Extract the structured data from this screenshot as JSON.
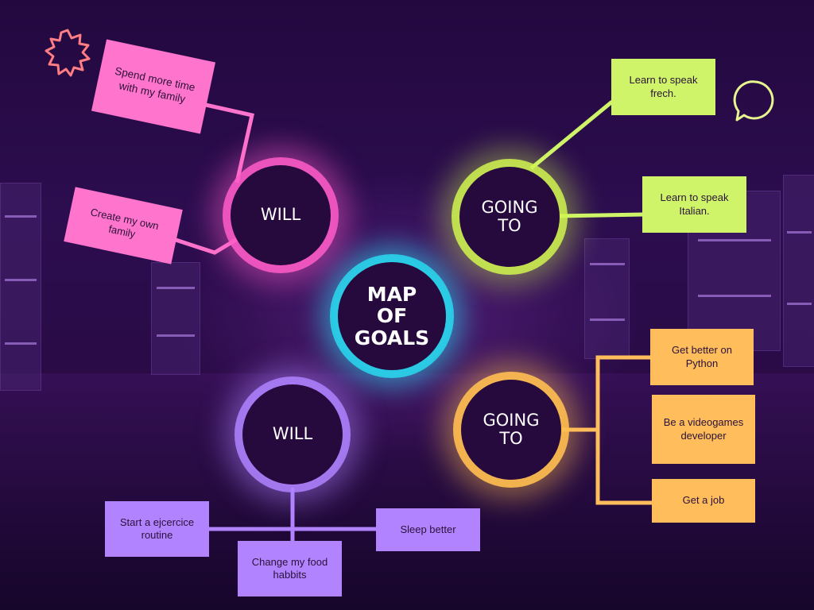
{
  "center": {
    "line1": "MAP",
    "line2": "OF",
    "line3": "GOALS"
  },
  "will_top": {
    "label": "WILL",
    "items": [
      "Spend more time with my family",
      "Create my own family"
    ]
  },
  "going_top": {
    "line1": "GOING",
    "line2": "TO",
    "items": [
      "Learn to speak frech.",
      "Learn to speak Italian."
    ]
  },
  "will_bottom": {
    "label": "WILL",
    "items": [
      "Start a ejcercice routine",
      "Change my food habbits",
      "Sleep better"
    ]
  },
  "going_bottom": {
    "line1": "GOING",
    "line2": "TO",
    "items": [
      "Get better on Python",
      "Be a videogames developer",
      "Get a job"
    ]
  },
  "colors": {
    "center": "#28e1f5",
    "will_top": "#ff74cc",
    "going_top": "#cff46a",
    "will_bottom": "#b183ff",
    "going_bottom": "#ffbd5c",
    "background": "#2a0b47"
  },
  "decorations": {
    "top_left": "starburst-icon",
    "top_right": "speech-bubble-icon"
  }
}
